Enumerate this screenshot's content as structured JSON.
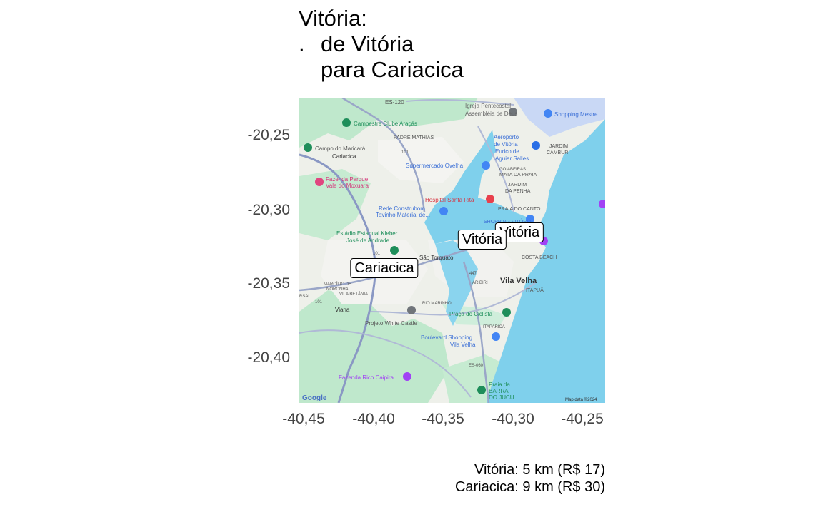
{
  "title": {
    "line1": "Vitória:",
    "bullet": ".",
    "line2": "de Vitória",
    "line3": "para Cariacica"
  },
  "axes": {
    "y_ticks": [
      "-20,25",
      "-20,30",
      "-20,35",
      "-20,40"
    ],
    "x_ticks": [
      "-40,45",
      "-40,40",
      "-40,35",
      "-40,30",
      "-40,25"
    ]
  },
  "map": {
    "places": [
      {
        "name": "Vitória",
        "lon": -40.302,
        "lat": -20.315
      },
      {
        "name": "Vitória",
        "lon": -40.328,
        "lat": -20.32
      },
      {
        "name": "Cariacica",
        "lon": -40.413,
        "lat": -20.34
      }
    ],
    "basemap_labels": {
      "es120": "ES-120",
      "igreja": "Igreja Pentecostal",
      "assembleia": "Assembléia de Deus",
      "shopping_mestre": "Shopping Mestre",
      "campestre": "Campestre Clube Araçás",
      "padre": "PADRE MATHIAS",
      "aeroporto1": "Aeroporto",
      "aeroporto2": "de Vitória",
      "aeroporto3": "Eurico de",
      "aeroporto4": "Aguiar Salles",
      "jardim_camburi1": "JARDIM",
      "jardim_camburi2": "CAMBURI",
      "campo": "Campo do Maricará",
      "cariacica_small": "Cariacica",
      "r101a": "101",
      "supermercado": "Supermercado Ovelha",
      "goiabeiras": "GOIABEIRAS",
      "mata": "MATA DA PRAIA",
      "fazenda1": "Fazenda Parque",
      "fazenda2": "Vale do Moxuara",
      "jardim_penha1": "JARDIM",
      "jardim_penha2": "DA PENHA",
      "hospital": "Hospital Santa Rita",
      "rede1": "Rede Construbom",
      "rede2": "Tavinho Material de...",
      "praia_canto": "PRAIA DO CANTO",
      "shopping_vitoria": "SHOPPING VITÓRIA",
      "estadio1": "Estádio Estadual Kleber",
      "estadio2": "José de Andrade",
      "r101b": "101",
      "sao_torquato": "São Torquato",
      "costa_beach": "COSTA BEACH",
      "r447": "447",
      "vila_velha": "Vila Velha",
      "aribiri": "ARIBIRI",
      "itapua": "ITAPUÃ",
      "marcilio1": "MARCÍLIO DE",
      "marcilio2": "NORONHA",
      "rsal": "RSAL",
      "vila_betania": "VILA BETÂNIA",
      "r101c": "101",
      "rio_marinho": "RIO MARINHO",
      "viana": "Viana",
      "praca": "Praça do Ciclista",
      "projeto": "Projeto White Castle",
      "itaparica": "ITAPARICA",
      "boulevard1": "Boulevard Shopping",
      "boulevard2": "Vila Velha",
      "es060": "ES-060",
      "fazenda_rico": "Fazenda Rico Caipira",
      "praia_barra1": "Praia da",
      "praia_barra2": "BARRA",
      "praia_barra3": "DO JUCU",
      "google": "Google",
      "attribution": "Map data ©2024"
    }
  },
  "caption": {
    "line1": "Vitória: 5 km (R$ 17)",
    "line2": "Cariacica: 9 km (R$ 30)"
  },
  "colors": {
    "water": "#7fd0ec",
    "park": "#b8e6c4",
    "urban": "#f1f2ee",
    "road": "#9aa6c8",
    "highway": "#7f8fb8"
  }
}
